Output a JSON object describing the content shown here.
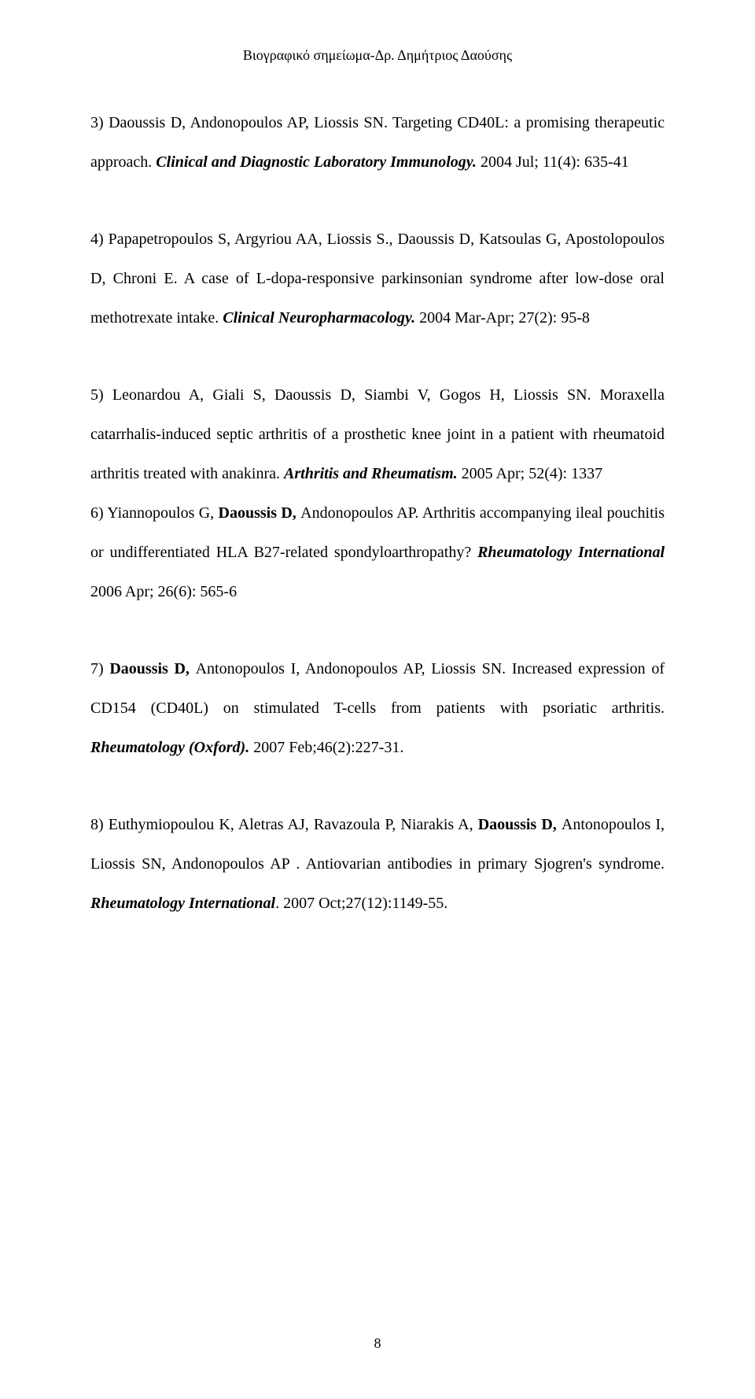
{
  "header": "Βιογραφικό σημείωμα-Δρ. Δημήτριος Δαούσης",
  "entries": {
    "e3": {
      "text1": "3) Daoussis D, Andonopoulos AP, Liossis SN. Targeting CD40L: a promising therapeutic approach. ",
      "journal": "Clinical and Diagnostic Laboratory Immunology. ",
      "text2": "2004 Jul; 11(4): 635-41"
    },
    "e4": {
      "text1": "4) Papapetropoulos S, Argyriou AA, Liossis S., Daoussis D, Katsoulas G, Apostolopoulos D, Chroni E. A case of L-dopa-responsive parkinsonian syndrome after low-dose oral methotrexate intake. ",
      "journal": "Clinical Neuropharmacology. ",
      "text2": "2004 Mar-Apr; 27(2): 95-8"
    },
    "e5": {
      "text1": "5) Leonardou A, Giali S, Daoussis D, Siambi V, Gogos H, Liossis SN. Moraxella catarrhalis-induced septic arthritis of a prosthetic knee joint in a patient with rheumatoid arthritis treated with anakinra. ",
      "journal": "Arthritis and Rheumatism. ",
      "text2": "2005 Apr; 52(4): 1337"
    },
    "e6": {
      "text1": "6) Yiannopoulos G, ",
      "bold1": "Daoussis D, ",
      "text2": " Andonopoulos AP. Arthritis accompanying ileal pouchitis or undifferentiated HLA B27-related spondyloarthropathy? ",
      "journal": "Rheumatology International ",
      "text3": " 2006 Apr; 26(6): 565-6"
    },
    "e7": {
      "text1": "7) ",
      "bold1": "Daoussis D, ",
      "text2": "Antonopoulos I, Andonopoulos AP, Liossis SN. Increased expression of CD154 (CD40L) on stimulated T-cells from patients with psoriatic arthritis. ",
      "journal": "Rheumatology (Oxford). ",
      "text3": "2007 Feb;46(2):227-31."
    },
    "e8": {
      "text1": "8) Euthymiopoulou K, Aletras AJ, Ravazoula P, Niarakis A, ",
      "bold1": "Daoussis D, ",
      "text2": "Antonopoulos I,  Liossis SN, Andonopoulos AP . Antiovarian antibodies in primary Sjogren's syndrome.  ",
      "journal": "Rheumatology  International",
      "text3": ". 2007 Oct;27(12):1149-55."
    }
  },
  "pageNumber": "8"
}
